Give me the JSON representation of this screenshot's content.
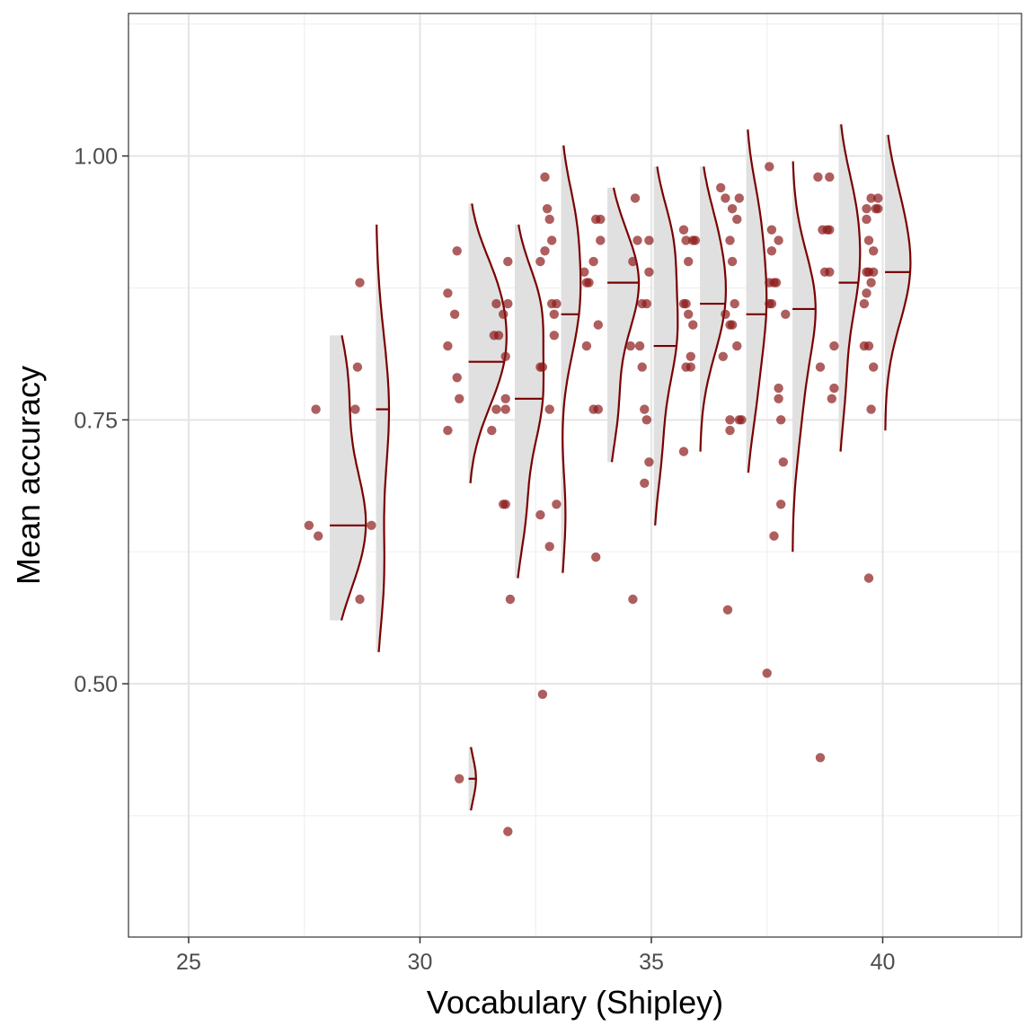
{
  "chart_data": {
    "type": "scatter",
    "subtype": "raincloud",
    "title": "",
    "xlabel": "Vocabulary (Shipley)",
    "ylabel": "Mean accuracy",
    "xlim": [
      23.7,
      43.0
    ],
    "ylim": [
      0.26,
      1.135
    ],
    "x_ticks": [
      25,
      30,
      35,
      40
    ],
    "x_tick_labels": [
      "25",
      "30",
      "35",
      "40"
    ],
    "y_ticks": [
      0.5,
      0.75,
      1.0
    ],
    "y_tick_labels": [
      "0.50",
      "0.75",
      "1.00"
    ],
    "grid": true,
    "legend": "none",
    "colors": {
      "points": "#8b1a1a",
      "density_line": "#7a0000",
      "density_fill": "#e0e0e0",
      "grid_major": "#e5e5e5",
      "grid_minor": "#f0f0f0",
      "panel_border": "#333333"
    },
    "points": [
      {
        "x": 27.6,
        "y": 0.65
      },
      {
        "x": 27.8,
        "y": 0.64
      },
      {
        "x": 27.75,
        "y": 0.76
      },
      {
        "x": 28.6,
        "y": 0.76
      },
      {
        "x": 28.65,
        "y": 0.8
      },
      {
        "x": 28.7,
        "y": 0.88
      },
      {
        "x": 28.7,
        "y": 0.58
      },
      {
        "x": 28.95,
        "y": 0.65
      },
      {
        "x": 30.6,
        "y": 0.87
      },
      {
        "x": 30.6,
        "y": 0.82
      },
      {
        "x": 30.6,
        "y": 0.74
      },
      {
        "x": 30.75,
        "y": 0.85
      },
      {
        "x": 30.8,
        "y": 0.91
      },
      {
        "x": 30.8,
        "y": 0.79
      },
      {
        "x": 30.85,
        "y": 0.77
      },
      {
        "x": 30.85,
        "y": 0.41
      },
      {
        "x": 31.55,
        "y": 0.74
      },
      {
        "x": 31.6,
        "y": 0.83
      },
      {
        "x": 31.65,
        "y": 0.76
      },
      {
        "x": 31.65,
        "y": 0.86
      },
      {
        "x": 31.7,
        "y": 0.83
      },
      {
        "x": 31.8,
        "y": 0.67
      },
      {
        "x": 31.85,
        "y": 0.67
      },
      {
        "x": 31.85,
        "y": 0.76
      },
      {
        "x": 31.85,
        "y": 0.81
      },
      {
        "x": 31.85,
        "y": 0.77
      },
      {
        "x": 31.8,
        "y": 0.85
      },
      {
        "x": 31.9,
        "y": 0.86
      },
      {
        "x": 31.9,
        "y": 0.9
      },
      {
        "x": 31.95,
        "y": 0.58
      },
      {
        "x": 31.9,
        "y": 0.36
      },
      {
        "x": 32.6,
        "y": 0.9
      },
      {
        "x": 32.6,
        "y": 0.8
      },
      {
        "x": 32.65,
        "y": 0.8
      },
      {
        "x": 32.6,
        "y": 0.66
      },
      {
        "x": 32.65,
        "y": 0.49
      },
      {
        "x": 32.7,
        "y": 0.98
      },
      {
        "x": 32.7,
        "y": 0.91
      },
      {
        "x": 32.75,
        "y": 0.95
      },
      {
        "x": 32.8,
        "y": 0.94
      },
      {
        "x": 32.8,
        "y": 0.76
      },
      {
        "x": 32.8,
        "y": 0.63
      },
      {
        "x": 32.85,
        "y": 0.86
      },
      {
        "x": 32.85,
        "y": 0.92
      },
      {
        "x": 32.9,
        "y": 0.83
      },
      {
        "x": 32.9,
        "y": 0.85
      },
      {
        "x": 32.95,
        "y": 0.67
      },
      {
        "x": 32.95,
        "y": 0.86
      },
      {
        "x": 33.55,
        "y": 0.89
      },
      {
        "x": 33.6,
        "y": 0.88
      },
      {
        "x": 33.6,
        "y": 0.82
      },
      {
        "x": 33.65,
        "y": 0.88
      },
      {
        "x": 33.75,
        "y": 0.9
      },
      {
        "x": 33.75,
        "y": 0.76
      },
      {
        "x": 33.8,
        "y": 0.94
      },
      {
        "x": 33.8,
        "y": 0.62
      },
      {
        "x": 33.85,
        "y": 0.84
      },
      {
        "x": 33.85,
        "y": 0.76
      },
      {
        "x": 33.9,
        "y": 0.92
      },
      {
        "x": 33.9,
        "y": 0.94
      },
      {
        "x": 34.55,
        "y": 0.82
      },
      {
        "x": 34.6,
        "y": 0.9
      },
      {
        "x": 34.6,
        "y": 0.58
      },
      {
        "x": 34.65,
        "y": 0.96
      },
      {
        "x": 34.7,
        "y": 0.92
      },
      {
        "x": 34.75,
        "y": 0.82
      },
      {
        "x": 34.8,
        "y": 0.8
      },
      {
        "x": 34.8,
        "y": 0.86
      },
      {
        "x": 34.85,
        "y": 0.76
      },
      {
        "x": 34.85,
        "y": 0.69
      },
      {
        "x": 34.9,
        "y": 0.86
      },
      {
        "x": 34.9,
        "y": 0.75
      },
      {
        "x": 34.95,
        "y": 0.89
      },
      {
        "x": 34.95,
        "y": 0.71
      },
      {
        "x": 34.95,
        "y": 0.92
      },
      {
        "x": 35.7,
        "y": 0.86
      },
      {
        "x": 35.7,
        "y": 0.93
      },
      {
        "x": 35.7,
        "y": 0.72
      },
      {
        "x": 35.75,
        "y": 0.8
      },
      {
        "x": 35.75,
        "y": 0.86
      },
      {
        "x": 35.75,
        "y": 0.92
      },
      {
        "x": 35.8,
        "y": 0.9
      },
      {
        "x": 35.8,
        "y": 0.85
      },
      {
        "x": 35.85,
        "y": 0.81
      },
      {
        "x": 35.85,
        "y": 0.8
      },
      {
        "x": 35.9,
        "y": 0.84
      },
      {
        "x": 35.9,
        "y": 0.92
      },
      {
        "x": 35.95,
        "y": 0.92
      },
      {
        "x": 36.5,
        "y": 0.97
      },
      {
        "x": 36.55,
        "y": 0.81
      },
      {
        "x": 36.6,
        "y": 0.96
      },
      {
        "x": 36.65,
        "y": 0.57
      },
      {
        "x": 36.7,
        "y": 0.74
      },
      {
        "x": 36.7,
        "y": 0.75
      },
      {
        "x": 36.7,
        "y": 0.84
      },
      {
        "x": 36.75,
        "y": 0.9
      },
      {
        "x": 36.75,
        "y": 0.95
      },
      {
        "x": 36.75,
        "y": 0.84
      },
      {
        "x": 36.8,
        "y": 0.86
      },
      {
        "x": 36.85,
        "y": 0.94
      },
      {
        "x": 36.85,
        "y": 0.82
      },
      {
        "x": 36.9,
        "y": 0.96
      },
      {
        "x": 36.9,
        "y": 0.75
      },
      {
        "x": 36.95,
        "y": 0.75
      },
      {
        "x": 36.7,
        "y": 0.92
      },
      {
        "x": 36.6,
        "y": 0.85
      },
      {
        "x": 37.5,
        "y": 0.51
      },
      {
        "x": 37.55,
        "y": 0.99
      },
      {
        "x": 37.55,
        "y": 0.88
      },
      {
        "x": 37.55,
        "y": 0.86
      },
      {
        "x": 37.6,
        "y": 0.93
      },
      {
        "x": 37.6,
        "y": 0.91
      },
      {
        "x": 37.6,
        "y": 0.86
      },
      {
        "x": 37.65,
        "y": 0.88
      },
      {
        "x": 37.65,
        "y": 0.64
      },
      {
        "x": 37.7,
        "y": 0.88
      },
      {
        "x": 37.75,
        "y": 0.92
      },
      {
        "x": 37.75,
        "y": 0.78
      },
      {
        "x": 37.75,
        "y": 0.77
      },
      {
        "x": 37.8,
        "y": 0.75
      },
      {
        "x": 37.8,
        "y": 0.67
      },
      {
        "x": 37.85,
        "y": 0.71
      },
      {
        "x": 37.9,
        "y": 0.85
      },
      {
        "x": 38.6,
        "y": 0.98
      },
      {
        "x": 38.65,
        "y": 0.8
      },
      {
        "x": 38.65,
        "y": 0.43
      },
      {
        "x": 38.7,
        "y": 0.93
      },
      {
        "x": 38.75,
        "y": 0.89
      },
      {
        "x": 38.8,
        "y": 0.93
      },
      {
        "x": 38.85,
        "y": 0.98
      },
      {
        "x": 38.85,
        "y": 0.89
      },
      {
        "x": 38.9,
        "y": 0.77
      },
      {
        "x": 38.95,
        "y": 0.82
      },
      {
        "x": 38.95,
        "y": 0.78
      },
      {
        "x": 38.85,
        "y": 0.93
      },
      {
        "x": 39.6,
        "y": 0.86
      },
      {
        "x": 39.6,
        "y": 0.82
      },
      {
        "x": 39.65,
        "y": 0.94
      },
      {
        "x": 39.65,
        "y": 0.89
      },
      {
        "x": 39.65,
        "y": 0.87
      },
      {
        "x": 39.7,
        "y": 0.92
      },
      {
        "x": 39.7,
        "y": 0.89
      },
      {
        "x": 39.7,
        "y": 0.82
      },
      {
        "x": 39.7,
        "y": 0.6
      },
      {
        "x": 39.75,
        "y": 0.96
      },
      {
        "x": 39.75,
        "y": 0.88
      },
      {
        "x": 39.75,
        "y": 0.76
      },
      {
        "x": 39.8,
        "y": 0.89
      },
      {
        "x": 39.8,
        "y": 0.8
      },
      {
        "x": 39.85,
        "y": 0.95
      },
      {
        "x": 39.9,
        "y": 0.95
      },
      {
        "x": 39.9,
        "y": 0.96
      },
      {
        "x": 39.65,
        "y": 0.95
      },
      {
        "x": 39.8,
        "y": 0.91
      }
    ],
    "clouds": [
      {
        "x": 28.05,
        "median": 0.65,
        "y_min": 0.56,
        "y_max": 0.83,
        "modes": [
          [
            0.65,
            0.06,
            1.0
          ],
          [
            0.79,
            0.05,
            0.45
          ]
        ],
        "width": 0.78
      },
      {
        "x": 29.05,
        "median": 0.76,
        "y_min": 0.53,
        "y_max": 0.935,
        "modes": [
          [
            0.76,
            0.07,
            1.0
          ],
          [
            0.6,
            0.05,
            0.55
          ]
        ],
        "width": 0.28
      },
      {
        "x": 31.05,
        "median": 0.805,
        "y_min": 0.69,
        "y_max": 0.955,
        "modes": [
          [
            0.81,
            0.05,
            1.0
          ],
          [
            0.88,
            0.04,
            0.5
          ]
        ],
        "width": 0.82
      },
      {
        "x": 31.05,
        "median": 0.41,
        "y_min": 0.38,
        "y_max": 0.44,
        "modes": [
          [
            0.41,
            0.02,
            1.0
          ]
        ],
        "width": 0.16
      },
      {
        "x": 32.05,
        "median": 0.77,
        "y_min": 0.6,
        "y_max": 0.935,
        "modes": [
          [
            0.77,
            0.05,
            1.0
          ],
          [
            0.86,
            0.04,
            0.8
          ],
          [
            0.66,
            0.04,
            0.35
          ]
        ],
        "width": 0.62
      },
      {
        "x": 33.05,
        "median": 0.85,
        "y_min": 0.605,
        "y_max": 1.01,
        "modes": [
          [
            0.86,
            0.05,
            1.0
          ],
          [
            0.94,
            0.04,
            0.6
          ],
          [
            0.66,
            0.04,
            0.25
          ]
        ],
        "width": 0.42
      },
      {
        "x": 34.05,
        "median": 0.88,
        "y_min": 0.71,
        "y_max": 0.97,
        "modes": [
          [
            0.88,
            0.05,
            1.0
          ],
          [
            0.76,
            0.04,
            0.3
          ]
        ],
        "width": 0.68
      },
      {
        "x": 35.05,
        "median": 0.82,
        "y_min": 0.65,
        "y_max": 0.99,
        "modes": [
          [
            0.83,
            0.05,
            1.0
          ],
          [
            0.92,
            0.04,
            0.7
          ],
          [
            0.72,
            0.04,
            0.3
          ]
        ],
        "width": 0.52
      },
      {
        "x": 36.05,
        "median": 0.86,
        "y_min": 0.72,
        "y_max": 0.99,
        "modes": [
          [
            0.86,
            0.05,
            1.0
          ],
          [
            0.93,
            0.04,
            0.4
          ]
        ],
        "width": 0.56
      },
      {
        "x": 37.05,
        "median": 0.85,
        "y_min": 0.7,
        "y_max": 1.025,
        "modes": [
          [
            0.86,
            0.06,
            1.0
          ],
          [
            0.95,
            0.04,
            0.35
          ],
          [
            0.76,
            0.04,
            0.25
          ]
        ],
        "width": 0.44
      },
      {
        "x": 38.05,
        "median": 0.855,
        "y_min": 0.625,
        "y_max": 0.995,
        "modes": [
          [
            0.86,
            0.05,
            1.0
          ],
          [
            0.76,
            0.05,
            0.35
          ]
        ],
        "width": 0.5
      },
      {
        "x": 39.05,
        "median": 0.88,
        "y_min": 0.72,
        "y_max": 1.03,
        "modes": [
          [
            0.89,
            0.05,
            1.0
          ],
          [
            0.96,
            0.04,
            0.5
          ],
          [
            0.78,
            0.04,
            0.3
          ]
        ],
        "width": 0.46
      },
      {
        "x": 40.05,
        "median": 0.89,
        "y_min": 0.74,
        "y_max": 1.02,
        "modes": [
          [
            0.89,
            0.05,
            1.0
          ],
          [
            0.96,
            0.04,
            0.3
          ]
        ],
        "width": 0.55
      }
    ]
  }
}
